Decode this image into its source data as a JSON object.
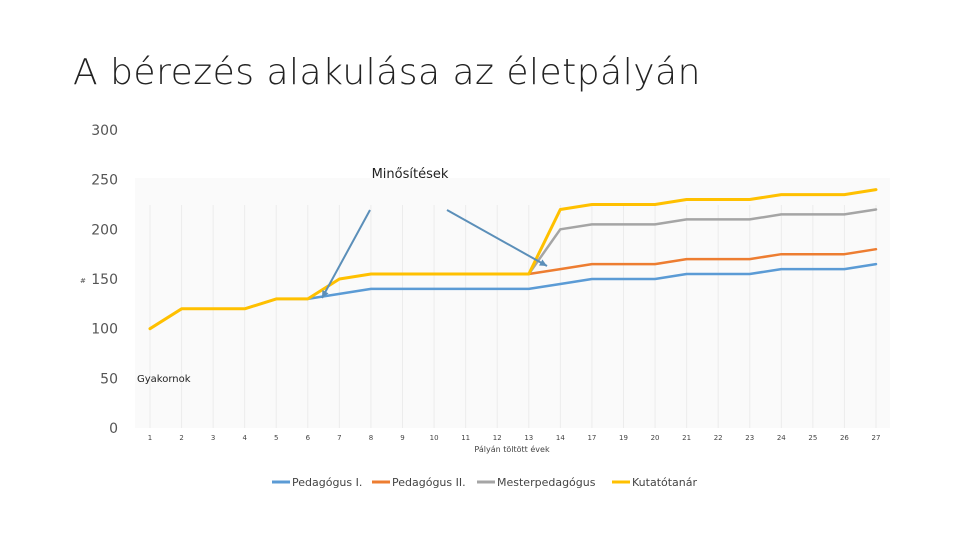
{
  "slide": {
    "title": "A bérezés alakulása az életpályán"
  },
  "chart_data": {
    "type": "line",
    "title": "",
    "xlabel": "Pályán töltött évek",
    "ylabel": "",
    "ylim": [
      0,
      300
    ],
    "yticks": [
      0,
      50,
      100,
      150,
      200,
      250,
      300
    ],
    "grid": false,
    "legend_position": "bottom",
    "categories": [
      "1",
      "2",
      "3",
      "4",
      "5",
      "6",
      "7",
      "8",
      "9",
      "10",
      "11",
      "12",
      "13",
      "14",
      "17",
      "19",
      "20",
      "21",
      "22",
      "23",
      "24",
      "25",
      "26",
      "27"
    ],
    "series": [
      {
        "name": "Pedagógus I.",
        "color": "#5B9BD5",
        "values": [
          100,
          120,
          120,
          120,
          130,
          130,
          null,
          null,
          null,
          null,
          null,
          null,
          null,
          null,
          null,
          null,
          null,
          null,
          null,
          null,
          null,
          null,
          null,
          null
        ]
      },
      {
        "name": "Pedagógus I.",
        "color": "#5B9BD5",
        "values": [
          null,
          null,
          null,
          null,
          null,
          130,
          135,
          140,
          140,
          140,
          140,
          140,
          140,
          145,
          150,
          150,
          150,
          155,
          155,
          155,
          160,
          160,
          160,
          165
        ]
      },
      {
        "name": "Pedagógus II.",
        "color": "#ED7D31",
        "values": [
          null,
          null,
          null,
          null,
          null,
          null,
          null,
          null,
          null,
          null,
          null,
          null,
          155,
          160,
          165,
          165,
          165,
          170,
          170,
          170,
          175,
          175,
          175,
          180
        ]
      },
      {
        "name": "Mesterpedagógus",
        "color": "#A5A5A5",
        "values": [
          null,
          null,
          null,
          null,
          null,
          null,
          null,
          null,
          null,
          null,
          null,
          null,
          155,
          200,
          205,
          205,
          205,
          210,
          210,
          210,
          215,
          215,
          215,
          220
        ]
      },
      {
        "name": "Kutatótanár",
        "color": "#FFC000",
        "values": [
          100,
          120,
          120,
          120,
          130,
          130,
          150,
          155,
          155,
          155,
          155,
          155,
          155,
          220,
          225,
          225,
          225,
          230,
          230,
          230,
          235,
          235,
          235,
          240
        ]
      }
    ],
    "annotations": [
      {
        "text": "Minősítések"
      },
      {
        "text": "Gyakornok"
      }
    ],
    "stray_marks": [
      "#"
    ]
  }
}
